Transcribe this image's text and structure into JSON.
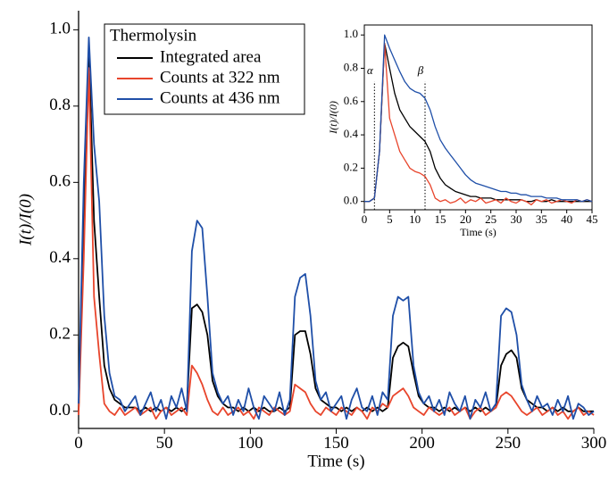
{
  "chart_data": [
    {
      "type": "line",
      "xlabel": "Time (s)",
      "ylabel": "I(t)/I(0)",
      "legend_title": "Thermolysin",
      "legend": "upper-left",
      "xlim": [
        0,
        300
      ],
      "ylim": [
        -0.045,
        1.05
      ],
      "xticks": [
        0,
        50,
        100,
        150,
        200,
        250,
        300
      ],
      "yticks": [
        {
          "value": 0,
          "label": "0.0"
        },
        {
          "value": 0.2,
          "label": "0.2"
        },
        {
          "value": 0.4,
          "label": "0.4"
        },
        {
          "value": 0.6,
          "label": "0.6"
        },
        {
          "value": 0.8,
          "label": "0.8"
        },
        {
          "value": 1.0,
          "label": "1.0"
        }
      ],
      "x": [
        0,
        3,
        6,
        9,
        12,
        15,
        18,
        21,
        24,
        27,
        30,
        33,
        36,
        39,
        42,
        45,
        48,
        51,
        54,
        57,
        60,
        63,
        66,
        69,
        72,
        75,
        78,
        81,
        84,
        87,
        90,
        93,
        96,
        99,
        102,
        105,
        108,
        111,
        114,
        117,
        120,
        123,
        126,
        129,
        132,
        135,
        138,
        141,
        144,
        147,
        150,
        153,
        156,
        159,
        162,
        165,
        168,
        171,
        174,
        177,
        180,
        183,
        186,
        189,
        192,
        195,
        198,
        201,
        204,
        207,
        210,
        213,
        216,
        219,
        222,
        225,
        228,
        231,
        234,
        237,
        240,
        243,
        246,
        249,
        252,
        255,
        258,
        261,
        264,
        267,
        270,
        273,
        276,
        279,
        282,
        285,
        288,
        291,
        294,
        297,
        300
      ],
      "series": [
        {
          "name": "Integrated area",
          "color": "#000000",
          "values": [
            0.0,
            0.5,
            0.95,
            0.5,
            0.3,
            0.12,
            0.06,
            0.03,
            0.02,
            0.01,
            0.01,
            0.01,
            0.0,
            0.01,
            0.0,
            0.01,
            0.0,
            0.01,
            0.0,
            0.01,
            0.0,
            0.01,
            0.27,
            0.28,
            0.26,
            0.2,
            0.08,
            0.04,
            0.02,
            0.01,
            0.01,
            0.0,
            0.01,
            0.0,
            0.01,
            0.0,
            0.01,
            0.0,
            0.0,
            0.01,
            0.0,
            0.01,
            0.2,
            0.21,
            0.21,
            0.15,
            0.06,
            0.03,
            0.02,
            0.01,
            0.01,
            0.0,
            0.01,
            0.0,
            0.01,
            0.0,
            0.01,
            0.0,
            0.01,
            0.0,
            0.01,
            0.14,
            0.17,
            0.18,
            0.17,
            0.1,
            0.04,
            0.02,
            0.01,
            0.01,
            0.0,
            0.01,
            0.0,
            0.01,
            0.0,
            0.01,
            0.0,
            0.01,
            0.0,
            0.01,
            0.0,
            0.01,
            0.12,
            0.15,
            0.16,
            0.14,
            0.06,
            0.03,
            0.02,
            0.01,
            0.01,
            0.0,
            0.01,
            0.0,
            0.01,
            0.0,
            0.0,
            0.01,
            0.0,
            0.0,
            0.0
          ]
        },
        {
          "name": "Counts at 322 nm",
          "color": "#e8452c",
          "values": [
            -0.01,
            0.4,
            0.9,
            0.3,
            0.15,
            0.02,
            0.0,
            -0.01,
            0.01,
            -0.01,
            0.0,
            0.01,
            -0.01,
            0.0,
            0.01,
            -0.02,
            0.0,
            0.01,
            -0.01,
            0.0,
            0.01,
            -0.01,
            0.12,
            0.1,
            0.07,
            0.03,
            0.0,
            -0.01,
            0.01,
            -0.01,
            0.0,
            0.01,
            -0.01,
            0.0,
            -0.02,
            0.01,
            0.0,
            -0.01,
            0.01,
            0.0,
            -0.01,
            0.0,
            0.07,
            0.06,
            0.05,
            0.02,
            0.0,
            -0.01,
            0.01,
            0.0,
            -0.01,
            0.01,
            0.0,
            -0.01,
            0.01,
            0.0,
            -0.02,
            0.01,
            0.0,
            0.02,
            0.01,
            0.04,
            0.05,
            0.06,
            0.04,
            0.01,
            0.0,
            -0.01,
            0.01,
            0.0,
            -0.01,
            0.0,
            0.01,
            -0.01,
            0.0,
            0.01,
            -0.02,
            0.0,
            0.01,
            -0.01,
            0.0,
            0.01,
            0.04,
            0.05,
            0.04,
            0.02,
            0.0,
            -0.01,
            0.0,
            0.01,
            -0.01,
            0.0,
            0.01,
            -0.01,
            0.0,
            -0.02,
            0.0,
            0.01,
            -0.01,
            0.0,
            -0.01
          ]
        },
        {
          "name": "Counts at 436 nm",
          "color": "#1f4fa8",
          "values": [
            0.02,
            0.6,
            0.98,
            0.7,
            0.55,
            0.25,
            0.1,
            0.04,
            0.03,
            0.0,
            0.02,
            0.04,
            -0.01,
            0.02,
            0.05,
            0.0,
            0.03,
            -0.02,
            0.04,
            0.01,
            0.06,
            0.0,
            0.42,
            0.5,
            0.48,
            0.3,
            0.1,
            0.05,
            0.02,
            0.04,
            -0.01,
            0.03,
            0.0,
            0.06,
            0.01,
            -0.02,
            0.04,
            0.02,
            0.0,
            0.05,
            -0.01,
            0.03,
            0.3,
            0.35,
            0.36,
            0.25,
            0.08,
            0.03,
            0.05,
            0.0,
            0.02,
            0.04,
            -0.02,
            0.03,
            0.06,
            0.01,
            0.0,
            0.04,
            -0.01,
            0.05,
            0.03,
            0.25,
            0.3,
            0.29,
            0.3,
            0.12,
            0.05,
            0.02,
            0.04,
            0.0,
            0.03,
            -0.01,
            0.05,
            0.02,
            0.0,
            0.04,
            -0.02,
            0.03,
            0.01,
            0.05,
            0.0,
            0.02,
            0.25,
            0.27,
            0.26,
            0.2,
            0.07,
            0.03,
            0.0,
            0.04,
            0.01,
            0.02,
            -0.01,
            0.03,
            0.0,
            0.04,
            -0.02,
            0.02,
            0.01,
            -0.01,
            0.0
          ]
        }
      ]
    },
    {
      "type": "line",
      "xlabel": "Time (s)",
      "ylabel": "I(t)/I(0)",
      "xlim": [
        0,
        45
      ],
      "ylim": [
        -0.05,
        1.06
      ],
      "xticks": [
        0,
        5,
        10,
        15,
        20,
        25,
        30,
        35,
        40,
        45
      ],
      "yticks": [
        {
          "value": 0,
          "label": "0.0"
        },
        {
          "value": 0.2,
          "label": "0.2"
        },
        {
          "value": 0.4,
          "label": "0.4"
        },
        {
          "value": 0.6,
          "label": "0.6"
        },
        {
          "value": 0.8,
          "label": "0.8"
        },
        {
          "value": 1.0,
          "label": "1.0"
        }
      ],
      "annotations": [
        {
          "text": "α",
          "x": 2
        },
        {
          "text": "β",
          "x": 12
        }
      ],
      "x": [
        0,
        1,
        2,
        3,
        4,
        5,
        6,
        7,
        8,
        9,
        10,
        11,
        12,
        13,
        14,
        15,
        16,
        17,
        18,
        19,
        20,
        21,
        22,
        23,
        24,
        25,
        26,
        27,
        28,
        29,
        30,
        31,
        32,
        33,
        34,
        35,
        36,
        37,
        38,
        39,
        40,
        41,
        42,
        43,
        44,
        45
      ],
      "series": [
        {
          "color": "#000000",
          "values": [
            0,
            0,
            0.02,
            0.3,
            0.95,
            0.8,
            0.65,
            0.55,
            0.5,
            0.45,
            0.42,
            0.39,
            0.36,
            0.3,
            0.2,
            0.14,
            0.1,
            0.08,
            0.06,
            0.05,
            0.04,
            0.03,
            0.03,
            0.02,
            0.02,
            0.02,
            0.01,
            0.01,
            0.01,
            0.01,
            0.01,
            0.01,
            0.0,
            0.0,
            0.01,
            0.0,
            0.0,
            0.01,
            0.0,
            0.0,
            0,
            0,
            0,
            0,
            0,
            0
          ]
        },
        {
          "color": "#e8452c",
          "values": [
            0,
            0,
            0.02,
            0.3,
            0.95,
            0.5,
            0.4,
            0.3,
            0.25,
            0.2,
            0.18,
            0.17,
            0.15,
            0.1,
            0.02,
            0.0,
            0.01,
            -0.01,
            0.0,
            0.02,
            -0.01,
            0.01,
            0.0,
            0.02,
            -0.01,
            0.0,
            0.01,
            -0.01,
            0.02,
            0.0,
            -0.01,
            0.01,
            0.0,
            -0.02,
            0.01,
            0.0,
            0.01,
            -0.01,
            0.0,
            0.01,
            0.0,
            -0.01,
            0.01,
            0.0,
            0.01,
            0.0
          ]
        },
        {
          "color": "#1f4fa8",
          "values": [
            0,
            0,
            0.02,
            0.3,
            1.0,
            0.92,
            0.85,
            0.78,
            0.72,
            0.68,
            0.66,
            0.65,
            0.62,
            0.55,
            0.45,
            0.37,
            0.32,
            0.28,
            0.24,
            0.2,
            0.16,
            0.13,
            0.11,
            0.1,
            0.09,
            0.08,
            0.07,
            0.06,
            0.06,
            0.05,
            0.05,
            0.04,
            0.04,
            0.03,
            0.03,
            0.03,
            0.02,
            0.02,
            0.02,
            0.01,
            0.01,
            0.01,
            0.01,
            0.0,
            0.01,
            0.0
          ]
        }
      ]
    }
  ]
}
